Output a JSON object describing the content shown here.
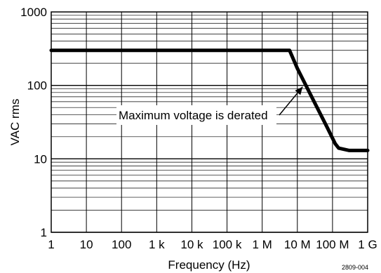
{
  "chart_data": {
    "type": "line",
    "title": "",
    "xlabel": "Frequency (Hz)",
    "ylabel": "VAC rms",
    "x_scale": "log",
    "y_scale": "log",
    "xlim": [
      1,
      1000000000
    ],
    "ylim": [
      1,
      1000
    ],
    "grid": true,
    "x_ticks": [
      {
        "value": 1,
        "label": "1"
      },
      {
        "value": 10,
        "label": "10"
      },
      {
        "value": 100,
        "label": "100"
      },
      {
        "value": 1000,
        "label": "1 k"
      },
      {
        "value": 10000,
        "label": "10 k"
      },
      {
        "value": 100000,
        "label": "100 k"
      },
      {
        "value": 1000000,
        "label": "1 M"
      },
      {
        "value": 10000000,
        "label": "10 M"
      },
      {
        "value": 100000000,
        "label": "100 M"
      },
      {
        "value": 1000000000,
        "label": "1 G"
      }
    ],
    "y_ticks": [
      {
        "value": 1,
        "label": "1"
      },
      {
        "value": 10,
        "label": "10"
      },
      {
        "value": 100,
        "label": "100"
      },
      {
        "value": 1000,
        "label": "1000"
      }
    ],
    "series": [
      {
        "points": [
          [
            1,
            300
          ],
          [
            1000000,
            300
          ],
          [
            6000000,
            300
          ],
          [
            10000000,
            170
          ],
          [
            30000000,
            60
          ],
          [
            70000000,
            27
          ],
          [
            120000000,
            16
          ],
          [
            150000000,
            14
          ],
          [
            300000000,
            13
          ],
          [
            1000000000,
            13
          ]
        ]
      }
    ],
    "annotations": [
      {
        "text": "Maximum voltage is derated",
        "arrow_to": [
          17000000,
          100
        ]
      }
    ],
    "figure_id": "2809-004",
    "colors": {
      "line": "#000000",
      "grid": "#000000",
      "background": "#ffffff"
    }
  }
}
